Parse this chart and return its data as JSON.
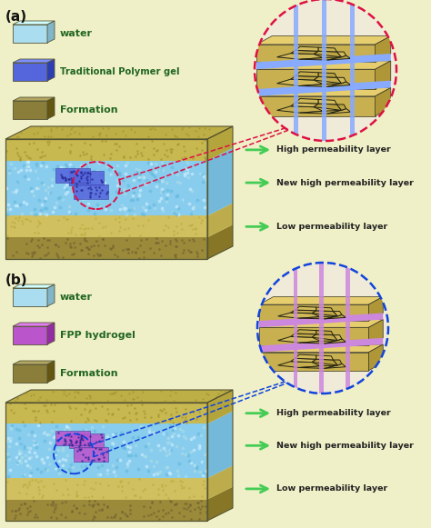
{
  "bg_color": "#f0f0c8",
  "panel_a_label": "(a)",
  "panel_b_label": "(b)",
  "water_label": "water",
  "gel_a_label": "Traditional Polymer gel",
  "gel_b_label": "FPP hydrogel",
  "formation_label": "Formation",
  "layer_labels": [
    "High permeability layer",
    "New high permeability layer",
    "Low permeability layer"
  ],
  "arrow_color": "#44cc55",
  "text_color": "#226622",
  "label_color": "#222222",
  "circle_color_a": "#dd1144",
  "circle_color_b": "#1144dd",
  "water_color": "#aaddf0",
  "gel_a_color": "#5566dd",
  "gel_b_color": "#bb55cc",
  "formation_color": "#8b7d3a",
  "sand_top_color": "#c8b850",
  "sand_bottom_color": "#9a8a3a",
  "yellow_mid_color": "#d0c060",
  "water_layer_color": "#88ccee"
}
